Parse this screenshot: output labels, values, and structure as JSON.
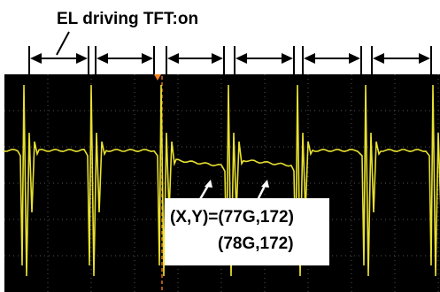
{
  "title": "EL driving TFT:on",
  "annotation": {
    "line1": "(X,Y)=(77G,172)",
    "line2": "(78G,172)"
  }
}
